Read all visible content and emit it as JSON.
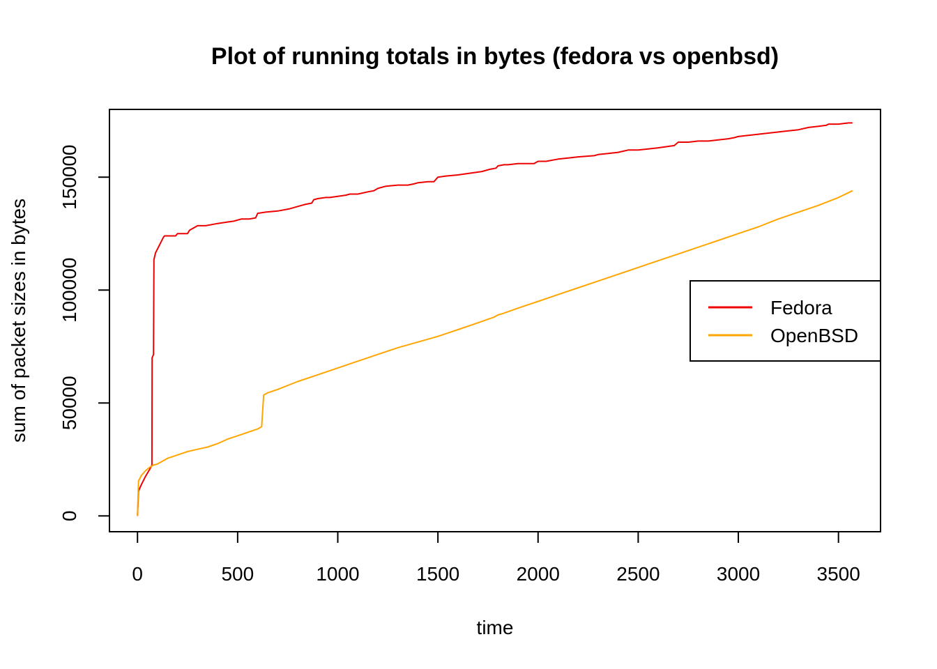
{
  "chart_data": {
    "type": "line",
    "title": "Plot of running totals in bytes (fedora vs openbsd)",
    "xlabel": "time",
    "ylabel": "sum of packet sizes in bytes",
    "xlim": [
      -140,
      3710
    ],
    "ylim": [
      -7000,
      180000
    ],
    "x_ticks": [
      0,
      500,
      1000,
      1500,
      2000,
      2500,
      3000,
      3500
    ],
    "x_tick_labels": [
      "0",
      "500",
      "1000",
      "1500",
      "2000",
      "2500",
      "3000",
      "3500"
    ],
    "y_ticks": [
      0,
      50000,
      100000,
      150000
    ],
    "y_tick_labels": [
      "0",
      "50000",
      "100000",
      "150000"
    ],
    "legend_position": "right",
    "series": [
      {
        "name": "Fedora",
        "color": "#EE0000",
        "x": [
          0,
          5,
          20,
          40,
          60,
          72,
          73,
          80,
          82,
          90,
          130,
          135,
          190,
          200,
          250,
          260,
          280,
          300,
          340,
          370,
          400,
          440,
          480,
          520,
          560,
          590,
          600,
          640,
          700,
          760,
          800,
          820,
          840,
          870,
          880,
          900,
          940,
          960,
          1000,
          1040,
          1060,
          1100,
          1150,
          1180,
          1200,
          1240,
          1300,
          1350,
          1380,
          1400,
          1450,
          1480,
          1500,
          1540,
          1600,
          1640,
          1680,
          1720,
          1760,
          1790,
          1800,
          1830,
          1850,
          1900,
          1980,
          2000,
          2040,
          2100,
          2150,
          2200,
          2280,
          2300,
          2350,
          2400,
          2450,
          2500,
          2550,
          2600,
          2640,
          2680,
          2700,
          2750,
          2800,
          2850,
          2900,
          2950,
          2980,
          3000,
          3050,
          3100,
          3150,
          3200,
          3250,
          3300,
          3350,
          3400,
          3440,
          3450,
          3500,
          3550,
          3570
        ],
        "y": [
          0,
          11000,
          14000,
          17500,
          20500,
          22500,
          70000,
          71500,
          113500,
          116500,
          123500,
          124000,
          124000,
          125000,
          125000,
          126500,
          127500,
          128500,
          128500,
          129000,
          129500,
          130000,
          130500,
          131500,
          131500,
          132000,
          134000,
          134500,
          135000,
          136000,
          137000,
          137500,
          138000,
          138500,
          140000,
          140500,
          141000,
          141000,
          141500,
          142000,
          142500,
          142500,
          143500,
          144000,
          145000,
          146000,
          146500,
          146500,
          147000,
          147500,
          148000,
          148000,
          150000,
          150500,
          151000,
          151500,
          152000,
          152500,
          153500,
          154000,
          155000,
          155500,
          155500,
          156000,
          156000,
          157000,
          157000,
          158000,
          158500,
          159000,
          159500,
          160000,
          160500,
          161000,
          162000,
          162000,
          162500,
          163000,
          163500,
          164000,
          165500,
          165500,
          166000,
          166000,
          166500,
          167000,
          167500,
          168000,
          168500,
          169000,
          169500,
          170000,
          170500,
          171000,
          172000,
          172500,
          173000,
          173500,
          173500,
          174000,
          174000
        ]
      },
      {
        "name": "OpenBSD",
        "color": "#FFA500",
        "x": [
          0,
          5,
          20,
          40,
          60,
          80,
          100,
          150,
          200,
          250,
          300,
          350,
          400,
          450,
          500,
          550,
          600,
          620,
          630,
          650,
          700,
          800,
          900,
          1000,
          1100,
          1200,
          1300,
          1400,
          1500,
          1600,
          1700,
          1780,
          1800,
          1820,
          1900,
          2000,
          2100,
          2200,
          2300,
          2400,
          2500,
          2600,
          2700,
          2800,
          2900,
          3000,
          3100,
          3200,
          3300,
          3400,
          3500,
          3570
        ],
        "y": [
          0,
          15500,
          18000,
          20000,
          21500,
          22500,
          23000,
          25500,
          27000,
          28500,
          29500,
          30500,
          32000,
          34000,
          35500,
          37000,
          38500,
          39500,
          53500,
          54500,
          56000,
          59500,
          62500,
          65500,
          68500,
          71500,
          74500,
          77000,
          79500,
          82500,
          85500,
          88000,
          89000,
          89500,
          92000,
          95000,
          98000,
          101000,
          104000,
          107000,
          110000,
          113000,
          116000,
          119000,
          122000,
          125000,
          128000,
          131500,
          134500,
          137500,
          141000,
          144000
        ]
      }
    ]
  }
}
